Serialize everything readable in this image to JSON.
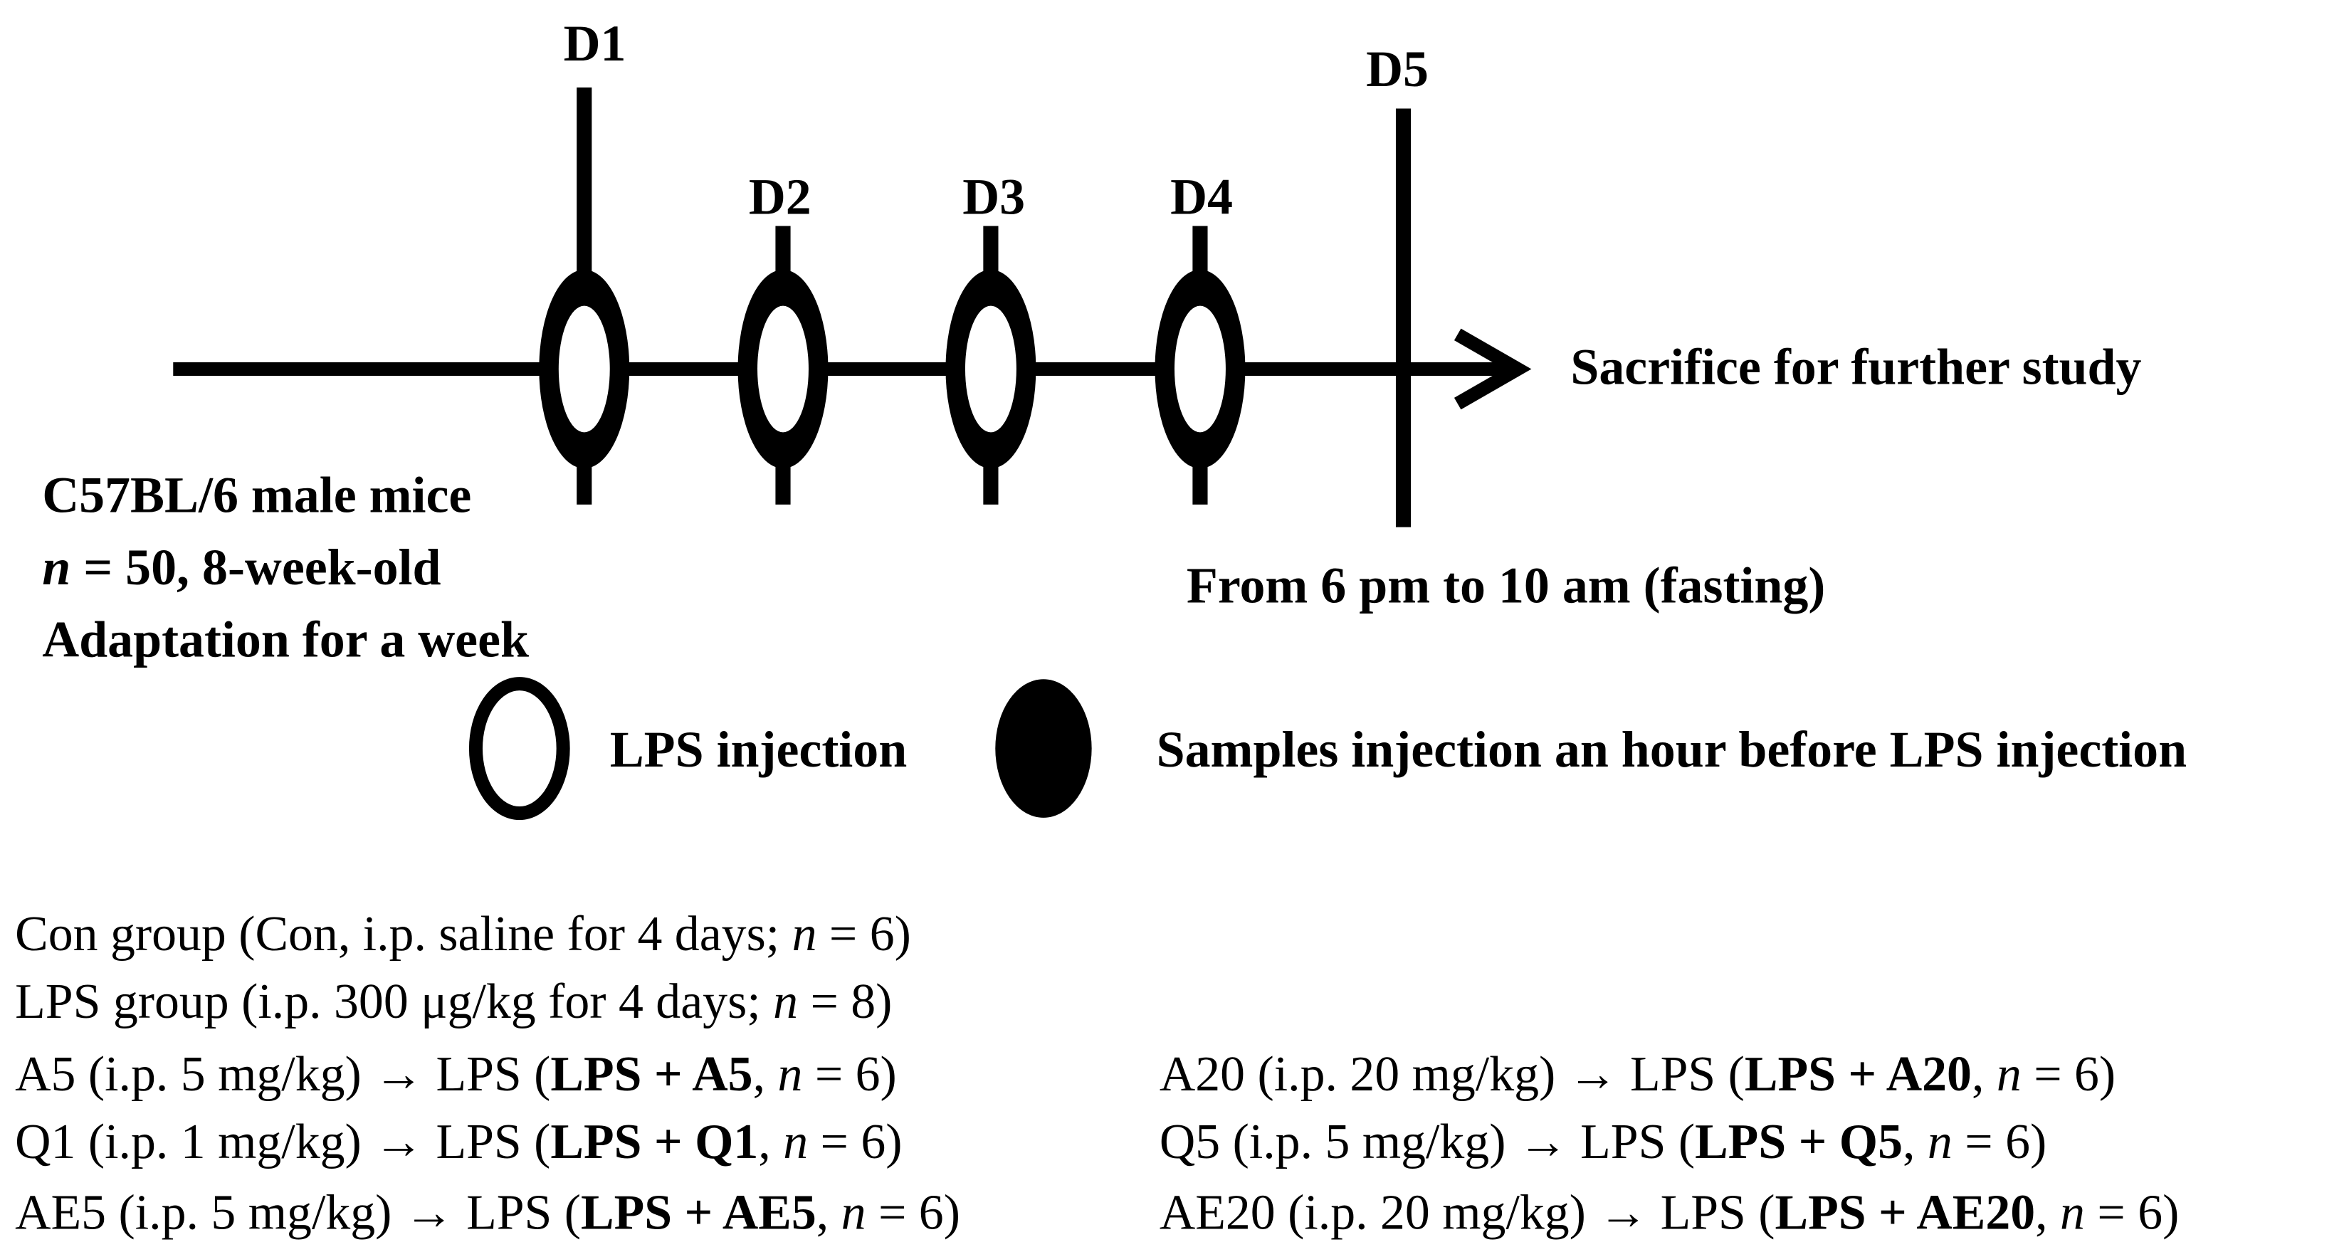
{
  "timeline": {
    "days": [
      "D1",
      "D2",
      "D3",
      "D4",
      "D5"
    ],
    "end_label": "Sacrifice for further study",
    "fasting_label": "From 6 pm to 10 am (fasting)"
  },
  "animals": {
    "lines": [
      [
        "C57BL/6 male mice"
      ],
      [
        "n",
        " = 50, 8-week-old"
      ],
      [
        "Adaptation for a week"
      ]
    ]
  },
  "legend": {
    "open": "LPS injection",
    "filled": "Samples injection an hour before LPS injection"
  },
  "groups": [
    [
      "Con group (Con, i.p. saline for 4 days; ",
      "n",
      " = 6)"
    ],
    [
      "LPS group (i.p. 300 μg/kg for 4 days; ",
      "n",
      " = 8)"
    ],
    [
      "A5 (i.p. 5 mg/kg) ",
      "→",
      " LPS (",
      "LPS + A5",
      ", ",
      "n",
      " = 6)"
    ],
    [
      "A20 (i.p. 20 mg/kg) ",
      "→",
      " LPS (",
      "LPS + A20",
      ", ",
      "n",
      " = 6)"
    ],
    [
      "Q1 (i.p. 1 mg/kg) ",
      "→",
      " LPS (",
      "LPS + Q1",
      ", ",
      "n",
      " = 6)"
    ],
    [
      "Q5 (i.p. 5 mg/kg) ",
      "→",
      " LPS (",
      "LPS + Q5",
      ", ",
      "n",
      " = 6)"
    ],
    [
      "AE5 (i.p. 5 mg/kg) ",
      "→",
      " LPS (",
      "LPS + AE5",
      ", ",
      "n",
      " = 6)"
    ],
    [
      "AE20 (i.p. 20 mg/kg) ",
      "→",
      " LPS (",
      "LPS + AE20",
      ", ",
      "n",
      " = 6)"
    ]
  ]
}
